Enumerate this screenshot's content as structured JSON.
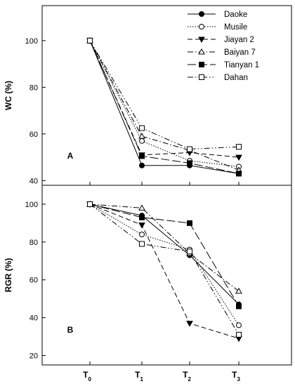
{
  "chart_data": [
    {
      "type": "line",
      "panel_label": "A",
      "ylabel": "WC (%)",
      "xlabel": "",
      "categories": [
        "T0",
        "T1",
        "T2",
        "T3"
      ],
      "category_labels": [
        {
          "main": "T",
          "sub": "0"
        },
        {
          "main": "T",
          "sub": "1"
        },
        {
          "main": "T",
          "sub": "2"
        },
        {
          "main": "T",
          "sub": "3"
        }
      ],
      "ylim": [
        38,
        115
      ],
      "yticks": [
        40,
        60,
        80,
        100
      ],
      "grid": false,
      "legend_position": "top-right",
      "series": [
        {
          "name": "Daoke",
          "values": [
            100,
            46.5,
            46.5,
            43
          ],
          "color": "#000000",
          "marker": "circle-filled",
          "dash": "solid"
        },
        {
          "name": "Musile",
          "values": [
            100,
            57,
            48.5,
            46
          ],
          "color": "#000000",
          "marker": "circle-open",
          "dash": "dotted"
        },
        {
          "name": "Jiayan 2",
          "values": [
            100,
            51,
            52,
            50
          ],
          "color": "#000000",
          "marker": "triangle-down-filled",
          "dash": "dashed"
        },
        {
          "name": "Baiyan 7",
          "values": [
            100,
            59,
            53,
            44.5
          ],
          "color": "#000000",
          "marker": "triangle-up-open",
          "dash": "dashdot"
        },
        {
          "name": "Tianyan 1",
          "values": [
            100,
            50.5,
            47.5,
            43
          ],
          "color": "#000000",
          "marker": "square-filled",
          "dash": "longdash"
        },
        {
          "name": "Dahan",
          "values": [
            100,
            62.5,
            53.5,
            54.5
          ],
          "color": "#000000",
          "marker": "square-open",
          "dash": "dashdotdot"
        }
      ]
    },
    {
      "type": "line",
      "panel_label": "B",
      "ylabel": "RGR (%)",
      "xlabel": "",
      "categories": [
        "T0",
        "T1",
        "T2",
        "T3"
      ],
      "category_labels": [
        {
          "main": "T",
          "sub": "0"
        },
        {
          "main": "T",
          "sub": "1"
        },
        {
          "main": "T",
          "sub": "2"
        },
        {
          "main": "T",
          "sub": "3"
        }
      ],
      "ylim": [
        15,
        110
      ],
      "yticks": [
        20,
        40,
        60,
        80,
        100
      ],
      "grid": false,
      "series": [
        {
          "name": "Daoke",
          "values": [
            100,
            94,
            73,
            47
          ],
          "color": "#000000",
          "marker": "circle-filled",
          "dash": "solid"
        },
        {
          "name": "Musile",
          "values": [
            100,
            84,
            76,
            36
          ],
          "color": "#000000",
          "marker": "circle-open",
          "dash": "dotted"
        },
        {
          "name": "Jiayan 2",
          "values": [
            100,
            89,
            37,
            29
          ],
          "color": "#000000",
          "marker": "triangle-down-filled",
          "dash": "dashed"
        },
        {
          "name": "Baiyan 7",
          "values": [
            100,
            98,
            74,
            54
          ],
          "color": "#000000",
          "marker": "triangle-up-open",
          "dash": "dashdot"
        },
        {
          "name": "Tianyan 1",
          "values": [
            100,
            93,
            90,
            46
          ],
          "color": "#000000",
          "marker": "square-filled",
          "dash": "longdash"
        },
        {
          "name": "Dahan",
          "values": [
            100,
            79,
            75,
            31
          ],
          "color": "#000000",
          "marker": "square-open",
          "dash": "dashdotdot"
        }
      ]
    }
  ]
}
